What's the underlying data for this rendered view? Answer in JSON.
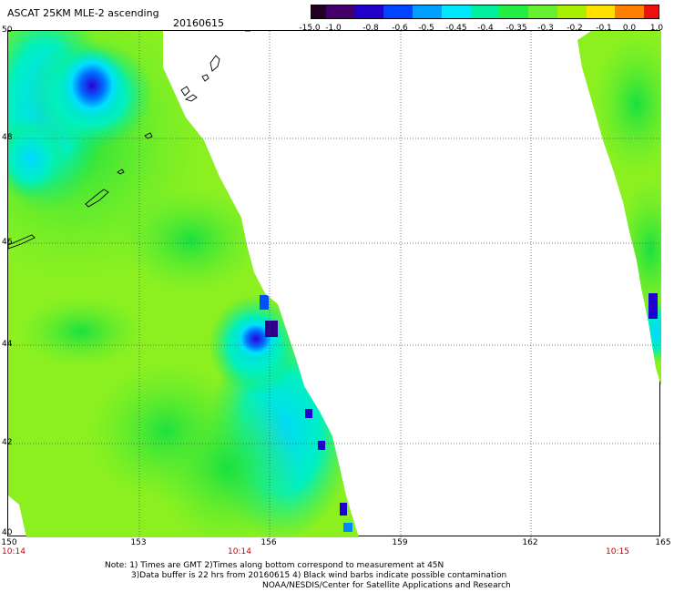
{
  "header": {
    "title": "ASCAT 25KM MLE-2 ascending",
    "date": "20160615"
  },
  "colorbar": {
    "labels": [
      "-15.0",
      "-1.0",
      "-0.8",
      "-0.6",
      "-0.5",
      "-0.45",
      "-0.4",
      "-0.35",
      "-0.3",
      "-0.2",
      "-0.1",
      "0.0",
      "1.0"
    ],
    "colors": [
      "#220022",
      "#44006a",
      "#2200cc",
      "#0044ff",
      "#00a0ff",
      "#00e8ff",
      "#00f0a0",
      "#22ee44",
      "#66f030",
      "#a8f000",
      "#ffe000",
      "#ff8000",
      "#ee1010"
    ]
  },
  "axes": {
    "lat_labels": [
      "50",
      "48",
      "46",
      "44",
      "42",
      "40"
    ],
    "lon_labels": [
      "150",
      "153",
      "156",
      "159",
      "162",
      "165"
    ]
  },
  "time_labels": [
    "10:14",
    "10:14",
    "10:15"
  ],
  "notes": [
    "Note: 1) Times are GMT 2)Times along bottom correspond to measurement at 45N",
    "3)Data buffer is 22 hrs from 20160615 4) Black wind barbs indicate possible contamination",
    "NOAA/NESDIS/Center for Satellite Applications and Research"
  ]
}
